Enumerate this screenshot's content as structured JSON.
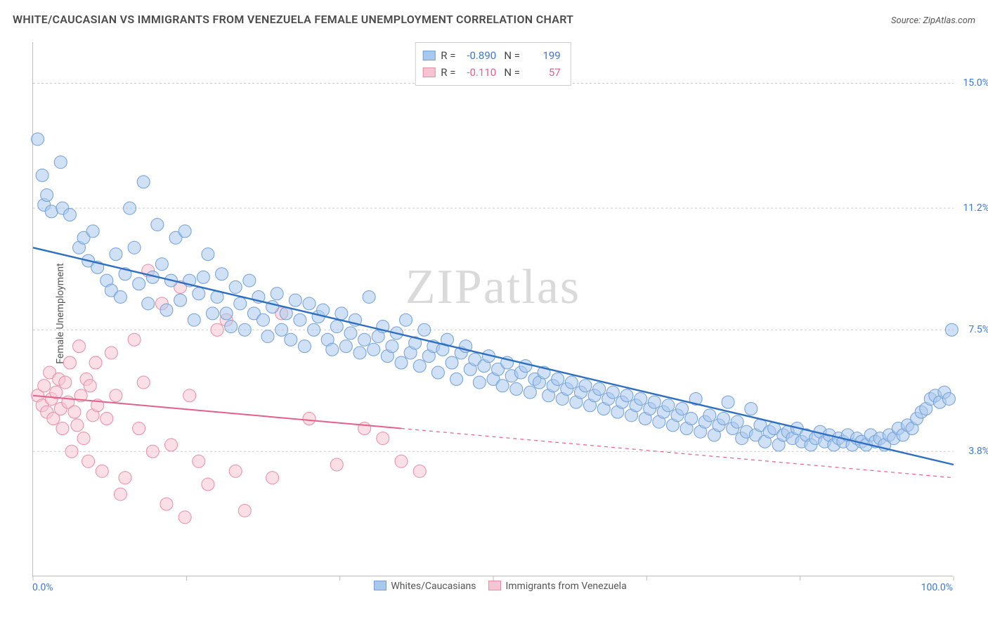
{
  "title": "WHITE/CAUCASIAN VS IMMIGRANTS FROM VENEZUELA FEMALE UNEMPLOYMENT CORRELATION CHART",
  "source_prefix": "Source: ",
  "source": "ZipAtlas.com",
  "watermark": "ZIPatlas",
  "ylabel": "Female Unemployment",
  "x_axis": {
    "min_label": "0.0%",
    "max_label": "100.0%",
    "min": 0,
    "max": 100
  },
  "y_axis": {
    "ticks": [
      {
        "value": 15.0,
        "label": "15.0%"
      },
      {
        "value": 11.2,
        "label": "11.2%"
      },
      {
        "value": 7.5,
        "label": "7.5%"
      },
      {
        "value": 3.8,
        "label": "3.8%"
      }
    ],
    "min": 0,
    "max": 16.25
  },
  "x_ticks": [
    0,
    16.67,
    33.33,
    50,
    66.67,
    83.33,
    100
  ],
  "colors": {
    "blue_fill": "#a9c8ed",
    "blue_stroke": "#6f9fd8",
    "blue_line": "#2f6fc1",
    "blue_text": "#3b78cf",
    "pink_fill": "#f6c5d3",
    "pink_stroke": "#e88ba8",
    "pink_line": "#e45f8a",
    "pink_text": "#e45f8a",
    "grid": "#cccccc",
    "axis": "#bdbdbd",
    "label": "#555555"
  },
  "top_legend": {
    "rows": [
      {
        "swatch": "blue",
        "r_label": "R =",
        "r": "-0.890",
        "n_label": "N =",
        "n": "199"
      },
      {
        "swatch": "pink",
        "r_label": "R =",
        "r": "-0.110",
        "n_label": "N =",
        "n": "57"
      }
    ]
  },
  "bottom_legend": [
    {
      "swatch": "blue",
      "label": "Whites/Caucasians"
    },
    {
      "swatch": "pink",
      "label": "Immigrants from Venezuela"
    }
  ],
  "marker": {
    "radius": 9,
    "fill_opacity": 0.55,
    "stroke_width": 1
  },
  "series_blue": {
    "trend": {
      "x1": 0,
      "y1": 10.0,
      "x2": 100,
      "y2": 3.4,
      "width": 2.4
    },
    "points": [
      [
        0.5,
        13.3
      ],
      [
        1,
        12.2
      ],
      [
        1.2,
        11.3
      ],
      [
        1.5,
        11.6
      ],
      [
        2,
        11.1
      ],
      [
        3,
        12.6
      ],
      [
        3.2,
        11.2
      ],
      [
        4,
        11.0
      ],
      [
        5,
        10.0
      ],
      [
        5.5,
        10.3
      ],
      [
        6,
        9.6
      ],
      [
        6.5,
        10.5
      ],
      [
        7,
        9.4
      ],
      [
        8,
        9.0
      ],
      [
        8.5,
        8.7
      ],
      [
        9,
        9.8
      ],
      [
        9.5,
        8.5
      ],
      [
        10,
        9.2
      ],
      [
        10.5,
        11.2
      ],
      [
        11,
        10.0
      ],
      [
        11.5,
        8.9
      ],
      [
        12,
        12.0
      ],
      [
        12.5,
        8.3
      ],
      [
        13,
        9.1
      ],
      [
        13.5,
        10.7
      ],
      [
        14,
        9.5
      ],
      [
        14.5,
        8.1
      ],
      [
        15,
        9.0
      ],
      [
        15.5,
        10.3
      ],
      [
        16,
        8.4
      ],
      [
        16.5,
        10.5
      ],
      [
        17,
        9.0
      ],
      [
        17.5,
        7.8
      ],
      [
        18,
        8.6
      ],
      [
        18.5,
        9.1
      ],
      [
        19,
        9.8
      ],
      [
        19.5,
        8.0
      ],
      [
        20,
        8.5
      ],
      [
        20.5,
        9.2
      ],
      [
        21,
        8.0
      ],
      [
        21.5,
        7.6
      ],
      [
        22,
        8.8
      ],
      [
        22.5,
        8.3
      ],
      [
        23,
        7.5
      ],
      [
        23.5,
        9.0
      ],
      [
        24,
        8.0
      ],
      [
        24.5,
        8.5
      ],
      [
        25,
        7.8
      ],
      [
        25.5,
        7.3
      ],
      [
        26,
        8.2
      ],
      [
        26.5,
        8.6
      ],
      [
        27,
        7.5
      ],
      [
        27.5,
        8.0
      ],
      [
        28,
        7.2
      ],
      [
        28.5,
        8.4
      ],
      [
        29,
        7.8
      ],
      [
        29.5,
        7.0
      ],
      [
        30,
        8.3
      ],
      [
        30.5,
        7.5
      ],
      [
        31,
        7.9
      ],
      [
        31.5,
        8.1
      ],
      [
        32,
        7.2
      ],
      [
        32.5,
        6.9
      ],
      [
        33,
        7.6
      ],
      [
        33.5,
        8.0
      ],
      [
        34,
        7.0
      ],
      [
        34.5,
        7.4
      ],
      [
        35,
        7.8
      ],
      [
        35.5,
        6.8
      ],
      [
        36,
        7.2
      ],
      [
        36.5,
        8.5
      ],
      [
        37,
        6.9
      ],
      [
        37.5,
        7.3
      ],
      [
        38,
        7.6
      ],
      [
        38.5,
        6.7
      ],
      [
        39,
        7.0
      ],
      [
        39.5,
        7.4
      ],
      [
        40,
        6.5
      ],
      [
        40.5,
        7.8
      ],
      [
        41,
        6.8
      ],
      [
        41.5,
        7.1
      ],
      [
        42,
        6.4
      ],
      [
        42.5,
        7.5
      ],
      [
        43,
        6.7
      ],
      [
        43.5,
        7.0
      ],
      [
        44,
        6.2
      ],
      [
        44.5,
        6.9
      ],
      [
        45,
        7.2
      ],
      [
        45.5,
        6.5
      ],
      [
        46,
        6.0
      ],
      [
        46.5,
        6.8
      ],
      [
        47,
        7.0
      ],
      [
        47.5,
        6.3
      ],
      [
        48,
        6.6
      ],
      [
        48.5,
        5.9
      ],
      [
        49,
        6.4
      ],
      [
        49.5,
        6.7
      ],
      [
        50,
        6.0
      ],
      [
        50.5,
        6.3
      ],
      [
        51,
        5.8
      ],
      [
        51.5,
        6.5
      ],
      [
        52,
        6.1
      ],
      [
        52.5,
        5.7
      ],
      [
        53,
        6.2
      ],
      [
        53.5,
        6.4
      ],
      [
        54,
        5.6
      ],
      [
        54.5,
        6.0
      ],
      [
        55,
        5.9
      ],
      [
        55.5,
        6.2
      ],
      [
        56,
        5.5
      ],
      [
        56.5,
        5.8
      ],
      [
        57,
        6.0
      ],
      [
        57.5,
        5.4
      ],
      [
        58,
        5.7
      ],
      [
        58.5,
        5.9
      ],
      [
        59,
        5.3
      ],
      [
        59.5,
        5.6
      ],
      [
        60,
        5.8
      ],
      [
        60.5,
        5.2
      ],
      [
        61,
        5.5
      ],
      [
        61.5,
        5.7
      ],
      [
        62,
        5.1
      ],
      [
        62.5,
        5.4
      ],
      [
        63,
        5.6
      ],
      [
        63.5,
        5.0
      ],
      [
        64,
        5.3
      ],
      [
        64.5,
        5.5
      ],
      [
        65,
        4.9
      ],
      [
        65.5,
        5.2
      ],
      [
        66,
        5.4
      ],
      [
        66.5,
        4.8
      ],
      [
        67,
        5.1
      ],
      [
        67.5,
        5.3
      ],
      [
        68,
        4.7
      ],
      [
        68.5,
        5.0
      ],
      [
        69,
        5.2
      ],
      [
        69.5,
        4.6
      ],
      [
        70,
        4.9
      ],
      [
        70.5,
        5.1
      ],
      [
        71,
        4.5
      ],
      [
        71.5,
        4.8
      ],
      [
        72,
        5.4
      ],
      [
        72.5,
        4.4
      ],
      [
        73,
        4.7
      ],
      [
        73.5,
        4.9
      ],
      [
        74,
        4.3
      ],
      [
        74.5,
        4.6
      ],
      [
        75,
        4.8
      ],
      [
        75.5,
        5.3
      ],
      [
        76,
        4.5
      ],
      [
        76.5,
        4.7
      ],
      [
        77,
        4.2
      ],
      [
        77.5,
        4.4
      ],
      [
        78,
        5.1
      ],
      [
        78.5,
        4.3
      ],
      [
        79,
        4.6
      ],
      [
        79.5,
        4.1
      ],
      [
        80,
        4.4
      ],
      [
        80.5,
        4.5
      ],
      [
        81,
        4.0
      ],
      [
        81.5,
        4.3
      ],
      [
        82,
        4.4
      ],
      [
        82.5,
        4.2
      ],
      [
        83,
        4.5
      ],
      [
        83.5,
        4.1
      ],
      [
        84,
        4.3
      ],
      [
        84.5,
        4.0
      ],
      [
        85,
        4.2
      ],
      [
        85.5,
        4.4
      ],
      [
        86,
        4.1
      ],
      [
        86.5,
        4.3
      ],
      [
        87,
        4.0
      ],
      [
        87.5,
        4.2
      ],
      [
        88,
        4.1
      ],
      [
        88.5,
        4.3
      ],
      [
        89,
        4.0
      ],
      [
        89.5,
        4.2
      ],
      [
        90,
        4.1
      ],
      [
        90.5,
        4.0
      ],
      [
        91,
        4.3
      ],
      [
        91.5,
        4.1
      ],
      [
        92,
        4.2
      ],
      [
        92.5,
        4.0
      ],
      [
        93,
        4.3
      ],
      [
        93.5,
        4.2
      ],
      [
        94,
        4.5
      ],
      [
        94.5,
        4.3
      ],
      [
        95,
        4.6
      ],
      [
        95.5,
        4.5
      ],
      [
        96,
        4.8
      ],
      [
        96.5,
        5.0
      ],
      [
        97,
        5.1
      ],
      [
        97.5,
        5.4
      ],
      [
        98,
        5.5
      ],
      [
        98.5,
        5.3
      ],
      [
        99,
        5.6
      ],
      [
        99.5,
        5.4
      ],
      [
        99.8,
        7.5
      ]
    ]
  },
  "series_pink": {
    "trend_solid": {
      "x1": 0,
      "y1": 5.5,
      "x2": 40,
      "y2": 4.5,
      "width": 2
    },
    "trend_dash": {
      "x1": 40,
      "y1": 4.5,
      "x2": 100,
      "y2": 3.0,
      "width": 1.2,
      "dash": "5 5"
    },
    "points": [
      [
        0.5,
        5.5
      ],
      [
        1,
        5.2
      ],
      [
        1.2,
        5.8
      ],
      [
        1.5,
        5.0
      ],
      [
        1.8,
        6.2
      ],
      [
        2,
        5.4
      ],
      [
        2.2,
        4.8
      ],
      [
        2.5,
        5.6
      ],
      [
        2.8,
        6.0
      ],
      [
        3,
        5.1
      ],
      [
        3.2,
        4.5
      ],
      [
        3.5,
        5.9
      ],
      [
        3.8,
        5.3
      ],
      [
        4,
        6.5
      ],
      [
        4.2,
        3.8
      ],
      [
        4.5,
        5.0
      ],
      [
        4.8,
        4.6
      ],
      [
        5,
        7.0
      ],
      [
        5.2,
        5.5
      ],
      [
        5.5,
        4.2
      ],
      [
        5.8,
        6.0
      ],
      [
        6,
        3.5
      ],
      [
        6.2,
        5.8
      ],
      [
        6.5,
        4.9
      ],
      [
        6.8,
        6.5
      ],
      [
        7,
        5.2
      ],
      [
        7.5,
        3.2
      ],
      [
        8,
        4.8
      ],
      [
        8.5,
        6.8
      ],
      [
        9,
        5.5
      ],
      [
        9.5,
        2.5
      ],
      [
        10,
        3.0
      ],
      [
        11,
        7.2
      ],
      [
        11.5,
        4.5
      ],
      [
        12,
        5.9
      ],
      [
        12.5,
        9.3
      ],
      [
        13,
        3.8
      ],
      [
        14,
        8.3
      ],
      [
        14.5,
        2.2
      ],
      [
        15,
        4.0
      ],
      [
        16,
        8.8
      ],
      [
        16.5,
        1.8
      ],
      [
        17,
        5.5
      ],
      [
        18,
        3.5
      ],
      [
        19,
        2.8
      ],
      [
        20,
        7.5
      ],
      [
        21,
        7.8
      ],
      [
        22,
        3.2
      ],
      [
        23,
        2.0
      ],
      [
        26,
        3.0
      ],
      [
        27,
        8.0
      ],
      [
        30,
        4.8
      ],
      [
        33,
        3.4
      ],
      [
        36,
        4.5
      ],
      [
        38,
        4.2
      ],
      [
        40,
        3.5
      ],
      [
        42,
        3.2
      ]
    ]
  }
}
